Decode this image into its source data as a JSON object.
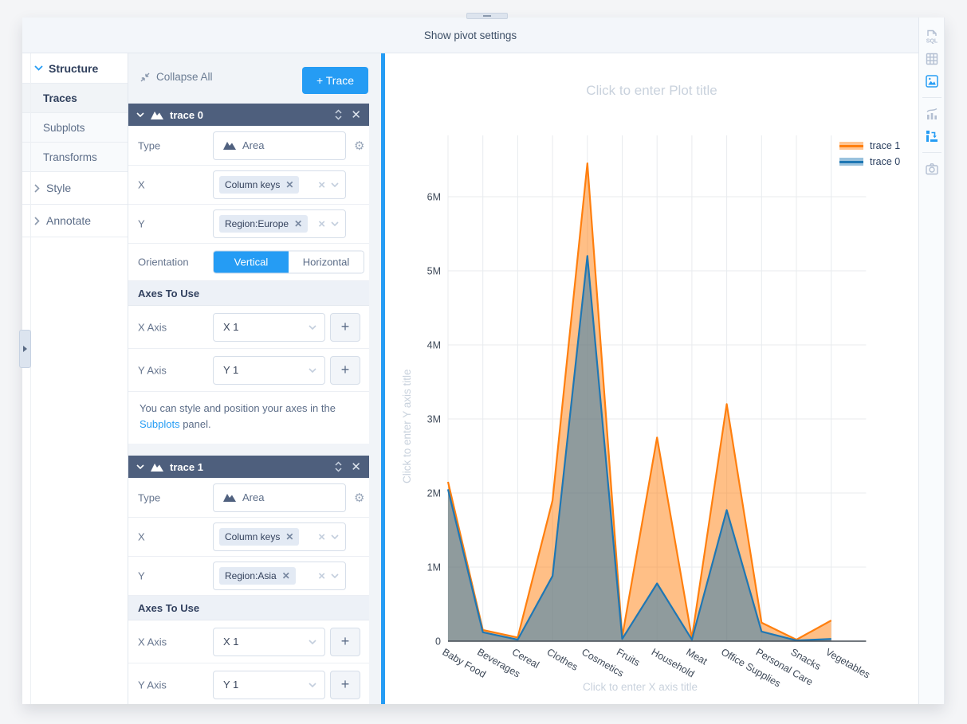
{
  "accent": "#259cf4",
  "top_bar": {
    "title": "Show pivot settings"
  },
  "nav": {
    "structure": "Structure",
    "items": [
      {
        "label": "Traces"
      },
      {
        "label": "Subplots"
      },
      {
        "label": "Transforms"
      }
    ],
    "style": "Style",
    "annotate": "Annotate"
  },
  "panel": {
    "collapse_all": "Collapse All",
    "add_trace": "+ Trace",
    "note": {
      "pre": "You can style and position your axes in the ",
      "link": "Subplots",
      "post": " panel."
    },
    "traces": [
      {
        "name": "trace 0",
        "type_label": "Type",
        "type_value": "Area",
        "x_label": "X",
        "x_value": "Column keys",
        "y_label": "Y",
        "y_value": "Region:Europe",
        "orientation_label": "Orientation",
        "orientation_vertical": "Vertical",
        "orientation_horizontal": "Horizontal",
        "axes_header": "Axes To Use",
        "x_axis_label": "X Axis",
        "x_axis_value": "X 1",
        "y_axis_label": "Y Axis",
        "y_axis_value": "Y 1"
      },
      {
        "name": "trace 1",
        "type_label": "Type",
        "type_value": "Area",
        "x_label": "X",
        "x_value": "Column keys",
        "y_label": "Y",
        "y_value": "Region:Asia",
        "axes_header": "Axes To Use",
        "x_axis_label": "X Axis",
        "x_axis_value": "X 1",
        "y_axis_label": "Y Axis",
        "y_axis_value": "Y 1"
      }
    ]
  },
  "right_toolbar": {
    "sql_label": "SQL"
  },
  "chart_data": {
    "type": "area",
    "title": "Click to enter Plot title",
    "xlabel": "Click to enter X axis title",
    "ylabel": "Click to enter Y axis title",
    "categories": [
      "Baby Food",
      "Beverages",
      "Cereal",
      "Clothes",
      "Cosmetics",
      "Fruits",
      "Household",
      "Meat",
      "Office Supplies",
      "Personal Care",
      "Snacks",
      "Vegetables"
    ],
    "series": [
      {
        "name": "trace 0",
        "color": "#1f77b4",
        "values": [
          2050000,
          120000,
          20000,
          880000,
          5200000,
          30000,
          780000,
          20000,
          1770000,
          130000,
          10000,
          30000
        ]
      },
      {
        "name": "trace 1",
        "color": "#ff7f0e",
        "values": [
          2150000,
          150000,
          50000,
          1900000,
          6450000,
          60000,
          2750000,
          40000,
          3200000,
          250000,
          20000,
          280000
        ]
      }
    ],
    "ylim": [
      0,
      6800000
    ],
    "yticks": [
      "0",
      "1M",
      "2M",
      "3M",
      "4M",
      "5M",
      "6M"
    ],
    "legend": [
      "trace 1",
      "trace 0"
    ],
    "legend_position": "top-right",
    "grid": true
  }
}
